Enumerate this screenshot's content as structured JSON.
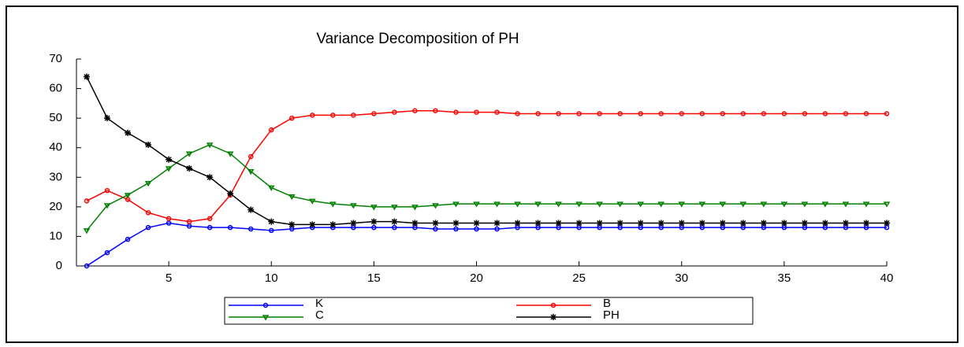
{
  "chart_data": {
    "type": "line",
    "title": "Variance Decomposition of PH",
    "x": [
      1,
      2,
      3,
      4,
      5,
      6,
      7,
      8,
      9,
      10,
      11,
      12,
      13,
      14,
      15,
      16,
      17,
      18,
      19,
      20,
      21,
      22,
      23,
      24,
      25,
      26,
      27,
      28,
      29,
      30,
      31,
      32,
      33,
      34,
      35,
      36,
      37,
      38,
      39,
      40
    ],
    "xlim": [
      1,
      40
    ],
    "xticks": [
      5,
      10,
      15,
      20,
      25,
      30,
      35,
      40
    ],
    "ylim": [
      0,
      70
    ],
    "yticks": [
      0,
      10,
      20,
      30,
      40,
      50,
      60,
      70
    ],
    "series": [
      {
        "name": "K",
        "color": "#0000ff",
        "marker": "circle",
        "values": [
          0,
          4.5,
          9,
          13,
          14.5,
          13.5,
          13,
          13,
          12.5,
          12,
          12.5,
          13,
          13,
          13,
          13,
          13,
          13,
          12.5,
          12.5,
          12.5,
          12.5,
          13,
          13,
          13,
          13,
          13,
          13,
          13,
          13,
          13,
          13,
          13,
          13,
          13,
          13,
          13,
          13,
          13,
          13,
          13
        ]
      },
      {
        "name": "B",
        "color": "#ff0000",
        "marker": "circle",
        "values": [
          22,
          25.5,
          22.5,
          18,
          16,
          15,
          16,
          24,
          37,
          46,
          50,
          51,
          51,
          51,
          51.5,
          52,
          52.5,
          52.5,
          52,
          52,
          52,
          51.5,
          51.5,
          51.5,
          51.5,
          51.5,
          51.5,
          51.5,
          51.5,
          51.5,
          51.5,
          51.5,
          51.5,
          51.5,
          51.5,
          51.5,
          51.5,
          51.5,
          51.5,
          51.5
        ]
      },
      {
        "name": "C",
        "color": "#008000",
        "marker": "triangle",
        "values": [
          12,
          20.5,
          24,
          28,
          33,
          38,
          41,
          38,
          32,
          26.5,
          23.5,
          22,
          21,
          20.5,
          20,
          20,
          20,
          20.5,
          21,
          21,
          21,
          21,
          21,
          21,
          21,
          21,
          21,
          21,
          21,
          21,
          21,
          21,
          21,
          21,
          21,
          21,
          21,
          21,
          21,
          21
        ]
      },
      {
        "name": "PH",
        "color": "#000000",
        "marker": "star",
        "values": [
          64,
          50,
          45,
          41,
          36,
          33,
          30,
          24.5,
          19,
          15,
          14,
          14,
          14,
          14.5,
          15,
          15,
          14.5,
          14.5,
          14.5,
          14.5,
          14.5,
          14.5,
          14.5,
          14.5,
          14.5,
          14.5,
          14.5,
          14.5,
          14.5,
          14.5,
          14.5,
          14.5,
          14.5,
          14.5,
          14.5,
          14.5,
          14.5,
          14.5,
          14.5,
          14.5
        ]
      }
    ]
  }
}
